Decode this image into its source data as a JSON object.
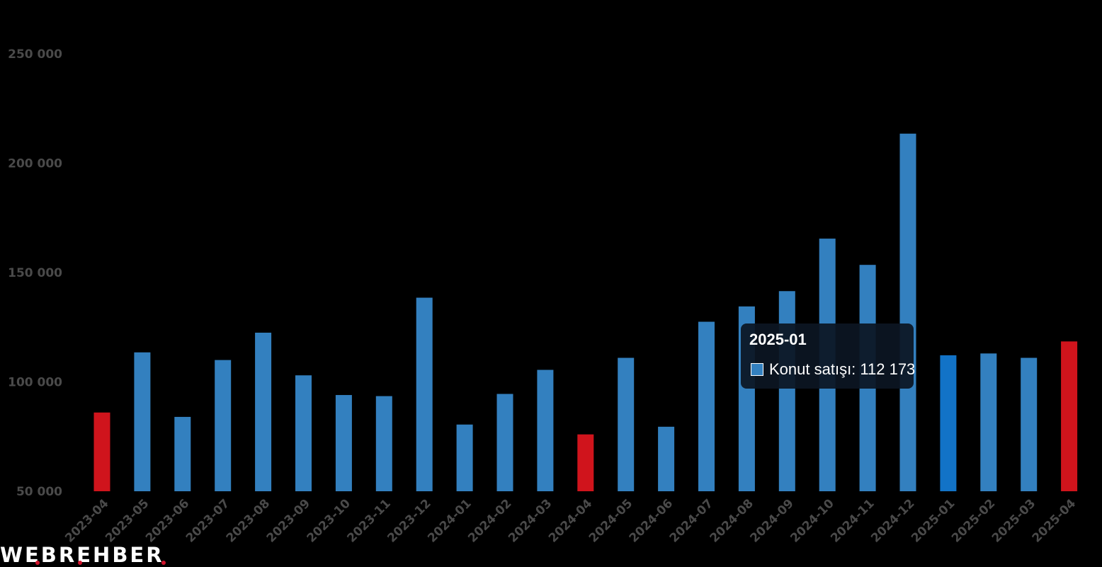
{
  "chart_data": {
    "type": "bar",
    "title": "",
    "xlabel": "",
    "ylabel": "",
    "categories": [
      "2023-04",
      "2023-05",
      "2023-06",
      "2023-07",
      "2023-08",
      "2023-09",
      "2023-10",
      "2023-11",
      "2023-12",
      "2024-01",
      "2024-02",
      "2024-03",
      "2024-04",
      "2024-05",
      "2024-06",
      "2024-07",
      "2024-08",
      "2024-09",
      "2024-10",
      "2024-11",
      "2024-12",
      "2025-01",
      "2025-02",
      "2025-03",
      "2025-04"
    ],
    "series": [
      {
        "name": "Konut satışı",
        "values": [
          86000,
          113500,
          84000,
          110000,
          122500,
          103000,
          94000,
          93500,
          138500,
          80500,
          94500,
          105500,
          76000,
          111000,
          79500,
          127500,
          134500,
          141500,
          165500,
          153500,
          213500,
          112173,
          113000,
          111000,
          118500
        ]
      }
    ],
    "ylim": [
      50000,
      250000
    ],
    "yticks": [
      50000,
      100000,
      150000,
      200000,
      250000
    ],
    "ytick_labels": [
      "50 000",
      "100 000",
      "150 000",
      "200 000",
      "250 000"
    ],
    "grid": false,
    "legend": "none",
    "colors": {
      "bar": "#3380bf",
      "highlight_bar": "#d0141c",
      "hover_bar": "#1273c7"
    },
    "highlighted_categories": [
      "2023-04",
      "2024-04",
      "2025-04"
    ],
    "hovered_category": "2025-01"
  },
  "tooltip": {
    "title": "2025-01",
    "label": "Konut satışı: 112 173",
    "swatch_color": "#3380bf"
  },
  "watermark": {
    "text": "WEBREHBER",
    "dot_color": "#d0142c"
  }
}
